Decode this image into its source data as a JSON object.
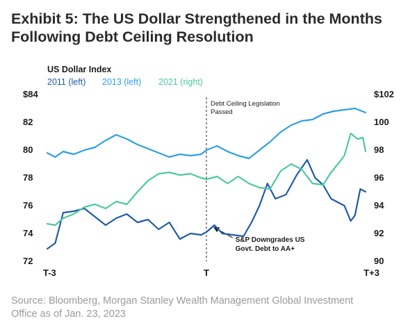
{
  "header": {
    "title_line1": "Exhibit 5: The US Dollar Strengthened in the Months",
    "title_line2": "Following Debt Ceiling Resolution"
  },
  "footer": {
    "source_line1": "Source: Bloomberg, Morgan Stanley Wealth Management Global Investment",
    "source_line2": "Office as of Jan. 23, 2023"
  },
  "chart_data": {
    "type": "line",
    "legend_title": "US Dollar Index",
    "legend_placement": "top-left",
    "grid": false,
    "x_ticks": [
      {
        "label": "T-3",
        "value": -3
      },
      {
        "label": "T",
        "value": 0
      },
      {
        "label": "T+3",
        "value": 3
      }
    ],
    "xlim": [
      -3,
      3
    ],
    "y_left": {
      "ylim": [
        72,
        84
      ],
      "ticks": [
        "$84",
        "82",
        "80",
        "78",
        "76",
        "74",
        "72"
      ],
      "tick_values": [
        84,
        82,
        80,
        78,
        76,
        74,
        72
      ]
    },
    "y_right": {
      "ylim": [
        90,
        102
      ],
      "ticks": [
        "$102",
        "100",
        "98",
        "96",
        "94",
        "92",
        "90"
      ],
      "tick_values": [
        102,
        100,
        98,
        96,
        94,
        92,
        90
      ]
    },
    "series": [
      {
        "name": "2011 (left)",
        "axis": "left",
        "color": "#1f5ba6",
        "x": [
          -3.0,
          -2.85,
          -2.7,
          -2.5,
          -2.3,
          -2.1,
          -1.9,
          -1.7,
          -1.5,
          -1.3,
          -1.1,
          -0.9,
          -0.7,
          -0.5,
          -0.3,
          -0.1,
          0.0,
          0.15,
          0.3,
          0.5,
          0.7,
          0.85,
          1.0,
          1.15,
          1.3,
          1.5,
          1.7,
          1.9,
          2.05,
          2.2,
          2.35,
          2.5,
          2.6,
          2.72,
          2.8,
          2.9,
          3.0
        ],
        "y": [
          72.9,
          73.3,
          75.5,
          75.6,
          75.8,
          75.2,
          74.6,
          75.1,
          75.4,
          74.8,
          75.0,
          74.3,
          74.8,
          73.6,
          74.0,
          73.9,
          74.1,
          74.6,
          74.0,
          73.9,
          73.8,
          74.8,
          76.0,
          77.6,
          76.5,
          76.8,
          78.2,
          79.3,
          78.0,
          77.5,
          76.5,
          76.2,
          76.0,
          74.9,
          75.3,
          77.2,
          77.0
        ]
      },
      {
        "name": "2013 (left)",
        "axis": "left",
        "color": "#2e9ee6",
        "x": [
          -3.0,
          -2.85,
          -2.7,
          -2.5,
          -2.3,
          -2.1,
          -1.9,
          -1.7,
          -1.5,
          -1.3,
          -1.1,
          -0.9,
          -0.7,
          -0.5,
          -0.3,
          -0.1,
          0.0,
          0.2,
          0.4,
          0.6,
          0.8,
          1.0,
          1.2,
          1.4,
          1.6,
          1.8,
          2.0,
          2.2,
          2.4,
          2.6,
          2.8,
          3.0
        ],
        "y": [
          79.8,
          79.5,
          79.9,
          79.7,
          80.0,
          80.2,
          80.7,
          81.1,
          80.8,
          80.4,
          80.1,
          79.8,
          79.5,
          79.7,
          79.6,
          79.7,
          80.0,
          80.3,
          79.9,
          79.6,
          79.4,
          80.0,
          80.6,
          81.3,
          81.8,
          82.1,
          82.2,
          82.6,
          82.8,
          82.9,
          83.0,
          82.7
        ]
      },
      {
        "name": "2021 (right)",
        "axis": "right",
        "color": "#4cc9a0",
        "x": [
          -3.0,
          -2.85,
          -2.7,
          -2.5,
          -2.3,
          -2.1,
          -1.9,
          -1.7,
          -1.5,
          -1.3,
          -1.1,
          -0.9,
          -0.7,
          -0.5,
          -0.3,
          -0.1,
          0.0,
          0.2,
          0.4,
          0.6,
          0.8,
          1.0,
          1.2,
          1.4,
          1.6,
          1.8,
          2.0,
          2.2,
          2.35,
          2.5,
          2.6,
          2.72,
          2.85,
          2.95,
          3.0
        ],
        "y": [
          92.7,
          92.6,
          93.1,
          93.4,
          93.9,
          94.1,
          93.8,
          94.3,
          94.1,
          95.0,
          95.8,
          96.3,
          96.4,
          96.2,
          96.3,
          96.0,
          95.9,
          96.1,
          95.6,
          96.1,
          95.6,
          95.3,
          95.2,
          96.5,
          97.0,
          96.6,
          95.6,
          95.5,
          96.4,
          97.1,
          97.6,
          99.2,
          98.8,
          98.9,
          97.9
        ]
      }
    ],
    "annotations": [
      {
        "text_line1": "Debt Ceiling Legislation",
        "text_line2": "Passed",
        "x": 0.0,
        "kind": "vertical-dashed-line"
      },
      {
        "text_line1": "S&P Downgrades US",
        "text_line2": "Govt. Debt to AA+",
        "x": 0.1,
        "y": 74.6,
        "axis": "left",
        "kind": "arrow"
      }
    ]
  }
}
